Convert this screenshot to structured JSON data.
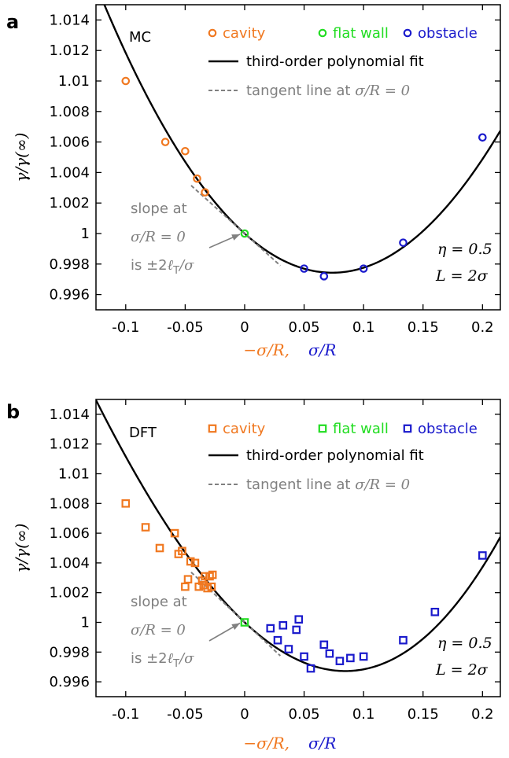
{
  "colors": {
    "cavity": "#f07820",
    "flat_wall": "#22dd22",
    "obstacle": "#1a1acc",
    "fit": "#000000",
    "tangent": "#808080"
  },
  "legend": {
    "cavity": "cavity",
    "flat_wall": "flat wall",
    "obstacle": "obstacle",
    "fit": "third-order polynomial fit",
    "tangent_prefix": "tangent line at ",
    "tangent_math": "σ/R = 0"
  },
  "annotation": {
    "line1": "slope at",
    "line2": "σ/R = 0",
    "line3_prefix": "is ±2",
    "line3_math": "ℓ",
    "line3_sub": "T",
    "line3_suffix": "/σ"
  },
  "params": {
    "eta": "η = 0.5",
    "L": "L = 2σ"
  },
  "axis": {
    "ylabel": "γ/γ(∞)",
    "xlabel_left": "−σ/R,",
    "xlabel_right": "σ/R",
    "xticks": [
      "-0.1",
      "-0.05",
      "0",
      "0.05",
      "0.1",
      "0.15",
      "0.2"
    ],
    "yticks": [
      "0.996",
      "0.998",
      "1",
      "1.002",
      "1.004",
      "1.006",
      "1.008",
      "1.01",
      "1.012",
      "1.014"
    ]
  },
  "chart_data": [
    {
      "type": "scatter",
      "panel": "a",
      "method": "MC",
      "marker": "circle",
      "xlim": [
        -0.125,
        0.215
      ],
      "ylim": [
        0.995,
        1.015
      ],
      "xticks": [
        -0.1,
        -0.05,
        0,
        0.05,
        0.1,
        0.15,
        0.2
      ],
      "yticks": [
        0.996,
        0.998,
        1,
        1.002,
        1.004,
        1.006,
        1.008,
        1.01,
        1.012,
        1.014
      ],
      "series": [
        {
          "name": "cavity",
          "x": [
            -0.1,
            -0.0667,
            -0.05,
            -0.04,
            -0.0333
          ],
          "y": [
            1.01,
            1.006,
            1.0054,
            1.0036,
            1.0027
          ]
        },
        {
          "name": "flat wall",
          "x": [
            0
          ],
          "y": [
            1.0
          ]
        },
        {
          "name": "obstacle",
          "x": [
            0.05,
            0.0667,
            0.1,
            0.1333,
            0.2
          ],
          "y": [
            0.9977,
            0.9972,
            0.9977,
            0.9994,
            1.0063
          ]
        }
      ],
      "fit": {
        "name": "third-order polynomial fit",
        "coeffs": [
          1.0,
          -0.07,
          0.48,
          -0.04
        ]
      },
      "tangent": {
        "name": "tangent line at σ/R = 0",
        "slope": -0.07,
        "xrange": [
          -0.045,
          0.03
        ]
      }
    },
    {
      "type": "scatter",
      "panel": "b",
      "method": "DFT",
      "marker": "square",
      "xlim": [
        -0.125,
        0.215
      ],
      "ylim": [
        0.995,
        1.015
      ],
      "xticks": [
        -0.1,
        -0.05,
        0,
        0.05,
        0.1,
        0.15,
        0.2
      ],
      "yticks": [
        0.996,
        0.998,
        1,
        1.002,
        1.004,
        1.006,
        1.008,
        1.01,
        1.012,
        1.014
      ],
      "series": [
        {
          "name": "cavity",
          "x": [
            -0.1,
            -0.0833,
            -0.0714,
            -0.0588,
            -0.0556,
            -0.0526,
            -0.05,
            -0.0476,
            -0.0455,
            -0.0417,
            -0.0385,
            -0.0357,
            -0.0345,
            -0.0333,
            -0.0313,
            -0.0294,
            -0.0278,
            -0.027
          ],
          "y": [
            1.008,
            1.0064,
            1.005,
            1.006,
            1.0046,
            1.0048,
            1.0024,
            1.0029,
            1.0041,
            1.004,
            1.0024,
            1.0028,
            1.0025,
            1.0031,
            1.0023,
            1.0031,
            1.0024,
            1.0032
          ]
        },
        {
          "name": "flat wall",
          "x": [
            0
          ],
          "y": [
            1.0
          ]
        },
        {
          "name": "obstacle",
          "x": [
            0.0217,
            0.0278,
            0.0323,
            0.037,
            0.0435,
            0.0455,
            0.05,
            0.0556,
            0.0667,
            0.0714,
            0.08,
            0.0889,
            0.1,
            0.1333,
            0.16,
            0.2
          ],
          "y": [
            0.9996,
            0.9988,
            0.9998,
            0.9982,
            0.9995,
            1.0002,
            0.9977,
            0.9969,
            0.9985,
            0.9979,
            0.9974,
            0.9976,
            0.9977,
            0.9988,
            1.0007,
            1.0045
          ]
        }
      ],
      "fit": {
        "name": "third-order polynomial fit",
        "coeffs": [
          1.0,
          -0.075,
          0.4,
          0.34
        ]
      },
      "tangent": {
        "name": "tangent line at σ/R = 0",
        "slope": -0.075,
        "xrange": [
          -0.045,
          0.03
        ]
      }
    }
  ]
}
